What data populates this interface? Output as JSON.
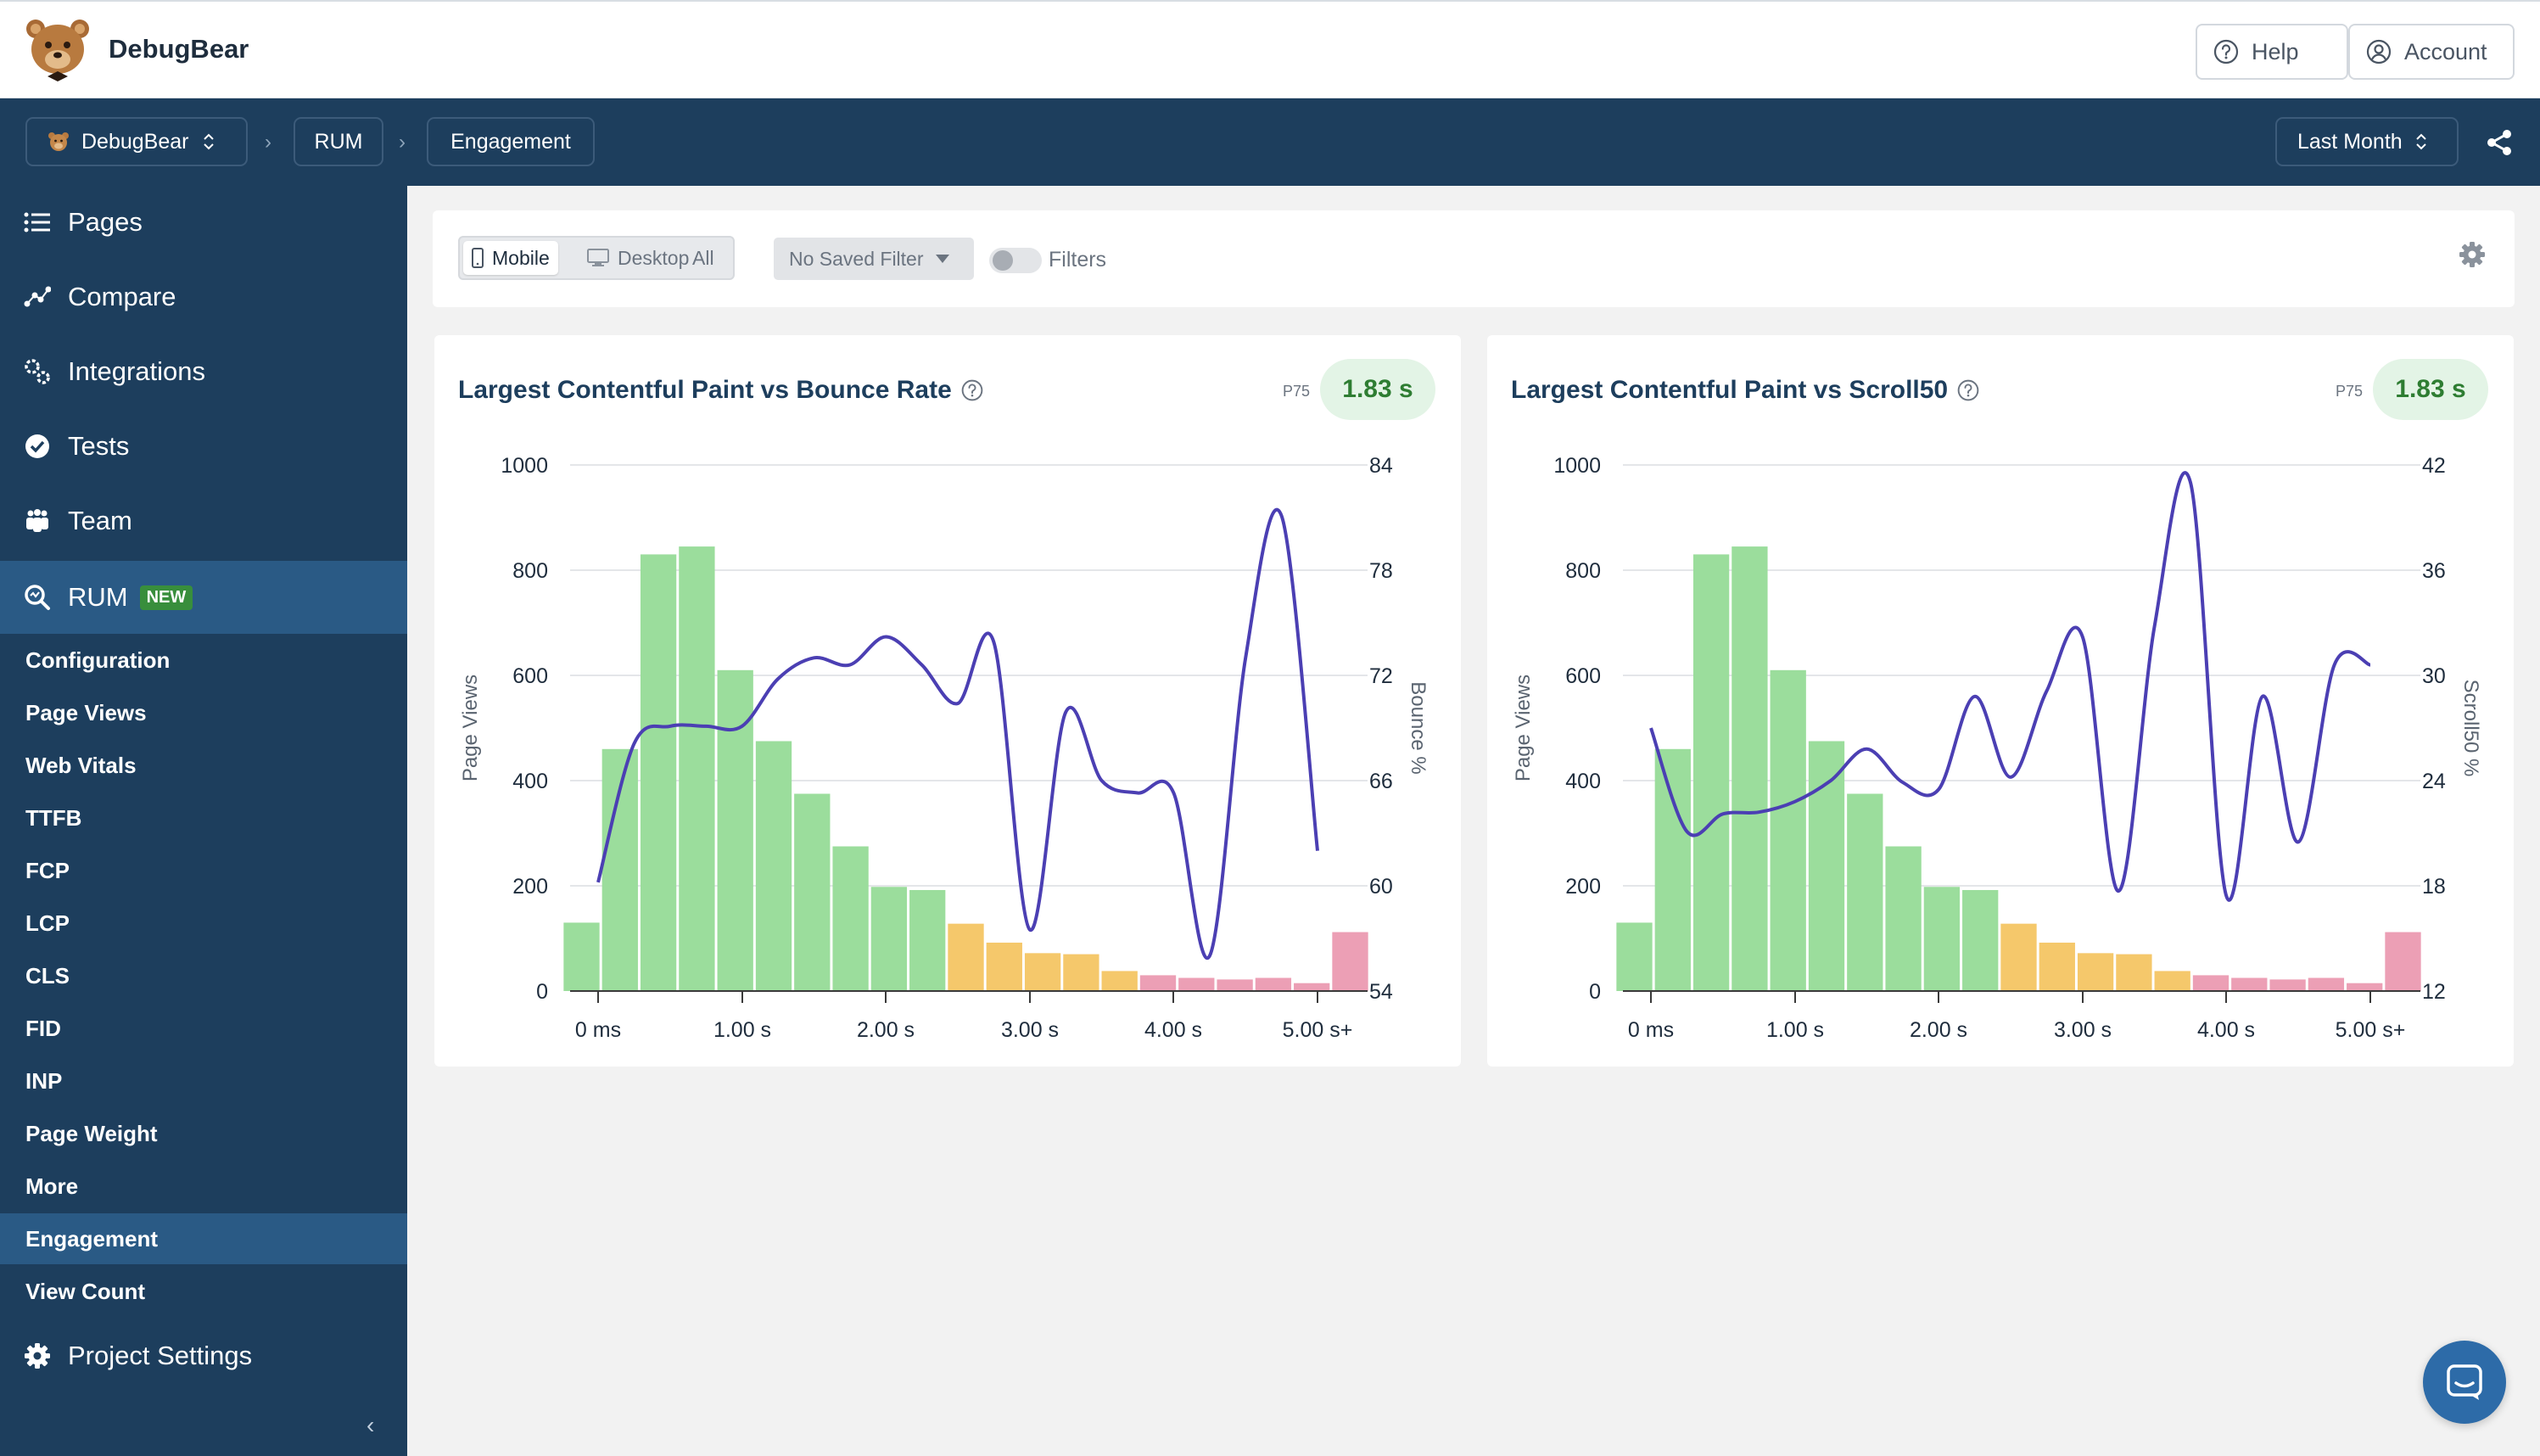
{
  "header": {
    "brand": "DebugBear",
    "help_label": "Help",
    "account_label": "Account"
  },
  "breadcrumb": {
    "project": "DebugBear",
    "section": "RUM",
    "page": "Engagement",
    "date_range": "Last Month"
  },
  "sidebar": {
    "items": [
      {
        "label": "Pages",
        "icon": "list-icon"
      },
      {
        "label": "Compare",
        "icon": "compare-icon"
      },
      {
        "label": "Integrations",
        "icon": "integrations-icon"
      },
      {
        "label": "Tests",
        "icon": "check-circle-icon"
      },
      {
        "label": "Team",
        "icon": "team-icon"
      },
      {
        "label": "RUM",
        "icon": "rum-search-icon",
        "badge": "NEW"
      }
    ],
    "sub_items": [
      "Configuration",
      "Page Views",
      "Web Vitals",
      "TTFB",
      "FCP",
      "LCP",
      "CLS",
      "FID",
      "INP",
      "Page Weight",
      "More",
      "Engagement",
      "View Count"
    ],
    "settings_label": "Project Settings",
    "collapse_label": "‹"
  },
  "filters": {
    "device_mobile": "Mobile",
    "device_desktop": "Desktop",
    "device_all": "All",
    "saved_filter": "No Saved Filter",
    "filters_label": "Filters"
  },
  "colors": {
    "good": "#9bdd9c",
    "needs_improvement": "#f5c86b",
    "poor": "#ec9fb5",
    "line": "#4b3fb3"
  },
  "chart_data": [
    {
      "type": "bar",
      "title": "Largest Contentful Paint vs Bounce Rate",
      "p75_label": "P75",
      "p75_value": "1.83 s",
      "ylabel": "Page Views",
      "y2label": "Bounce %",
      "ylim": [
        0,
        1000
      ],
      "y2lim": [
        54,
        84
      ],
      "y_ticks": [
        "0",
        "200",
        "400",
        "600",
        "800",
        "1000"
      ],
      "y2_ticks": [
        "54",
        "60",
        "66",
        "72",
        "78",
        "84"
      ],
      "x_ticks": [
        "0 ms",
        "1.00 s",
        "2.00 s",
        "3.00 s",
        "4.00 s",
        "5.00 s+"
      ],
      "x": [
        0,
        0.25,
        0.5,
        0.75,
        1.0,
        1.25,
        1.5,
        1.75,
        2.0,
        2.25,
        2.5,
        2.75,
        3.0,
        3.25,
        3.5,
        3.75,
        4.0,
        4.25,
        4.5,
        4.75,
        5.0
      ],
      "values": [
        130,
        460,
        830,
        845,
        610,
        475,
        375,
        275,
        198,
        192,
        128,
        92,
        72,
        70,
        38,
        30,
        25,
        22,
        25,
        15,
        112
      ],
      "line": [
        60.2,
        68.1,
        69.1,
        69.1,
        69.1,
        71.8,
        73.0,
        72.6,
        74.2,
        72.6,
        70.4,
        73.9,
        57.5,
        69.9,
        66.0,
        65.3,
        65.3,
        56.0,
        73.0,
        81.1,
        62.0
      ]
    },
    {
      "type": "bar",
      "title": "Largest Contentful Paint vs Scroll50",
      "p75_label": "P75",
      "p75_value": "1.83 s",
      "ylabel": "Page Views",
      "y2label": "Scroll50 %",
      "ylim": [
        0,
        1000
      ],
      "y2lim": [
        12,
        42
      ],
      "y_ticks": [
        "0",
        "200",
        "400",
        "600",
        "800",
        "1000"
      ],
      "y2_ticks": [
        "12",
        "18",
        "24",
        "30",
        "36",
        "42"
      ],
      "x_ticks": [
        "0 ms",
        "1.00 s",
        "2.00 s",
        "3.00 s",
        "4.00 s",
        "5.00 s+"
      ],
      "x": [
        0,
        0.25,
        0.5,
        0.75,
        1.0,
        1.25,
        1.5,
        1.75,
        2.0,
        2.25,
        2.5,
        2.75,
        3.0,
        3.25,
        3.5,
        3.75,
        4.0,
        4.25,
        4.5,
        4.75,
        5.0
      ],
      "values": [
        130,
        460,
        830,
        845,
        610,
        475,
        375,
        275,
        198,
        192,
        128,
        92,
        72,
        70,
        38,
        30,
        25,
        22,
        25,
        15,
        112
      ],
      "line": [
        27.0,
        21.1,
        22.1,
        22.2,
        22.8,
        24.0,
        25.8,
        23.9,
        23.5,
        28.8,
        24.2,
        29.1,
        32.2,
        17.7,
        32.8,
        41.0,
        17.4,
        28.8,
        20.5,
        30.6,
        30.6
      ]
    }
  ],
  "chat_button": "chat-icon"
}
